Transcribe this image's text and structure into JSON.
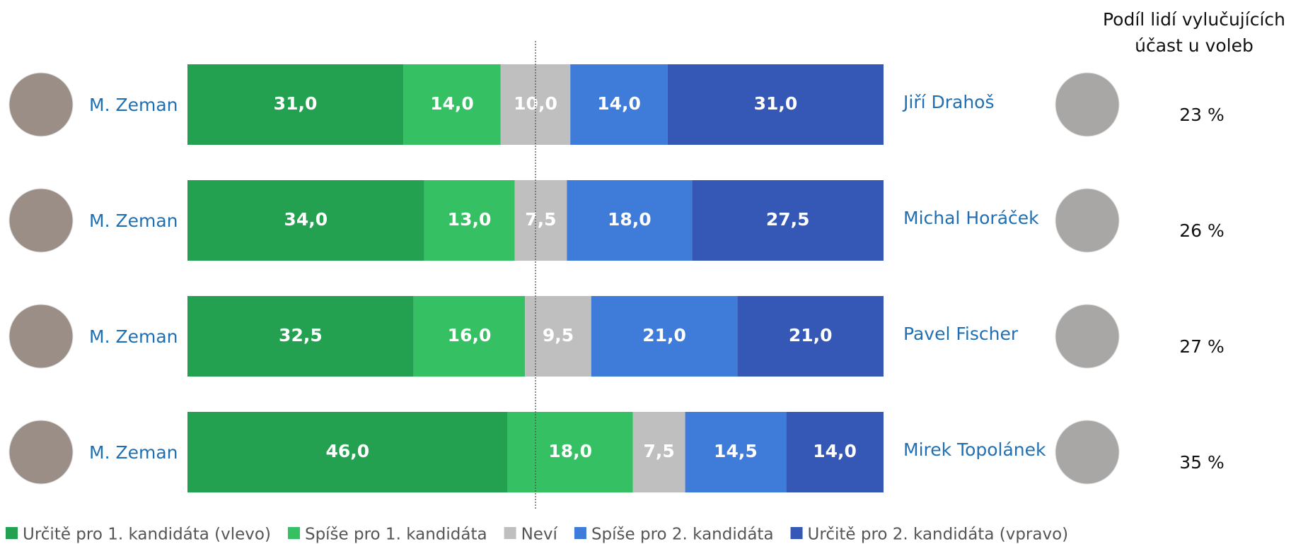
{
  "chart_data": {
    "type": "stacked_bar_horizontal",
    "left_labels": [
      "M. Zeman",
      "M. Zeman",
      "M. Zeman",
      "M. Zeman"
    ],
    "categories": [
      "Jiří Drahoš",
      "Michal Horáček",
      "Pavel Fischer",
      "Mirek Topolánek"
    ],
    "xlim": [
      0,
      100
    ],
    "series": [
      {
        "name": "Určitě pro 1. kandidáta (vlevo)",
        "color": "#24a150",
        "values": [
          31.0,
          34.0,
          32.5,
          46.0
        ],
        "value_labels": [
          "31,0",
          "34,0",
          "32,5",
          "46,0"
        ]
      },
      {
        "name": "Spíše pro 1. kandidáta",
        "color": "#35c063",
        "values": [
          14.0,
          13.0,
          16.0,
          18.0
        ],
        "value_labels": [
          "14,0",
          "13,0",
          "16,0",
          "18,0"
        ]
      },
      {
        "name": "Neví",
        "color": "#bfbfbf",
        "values": [
          10.0,
          7.5,
          9.5,
          7.5
        ],
        "value_labels": [
          "10,0",
          "7,5",
          "9,5",
          "7,5"
        ]
      },
      {
        "name": "Spíše pro 2. kandidáta",
        "color": "#3f7bd9",
        "values": [
          14.0,
          18.0,
          21.0,
          14.5
        ],
        "value_labels": [
          "14,0",
          "18,0",
          "21,0",
          "14,5"
        ]
      },
      {
        "name": "Určitě pro 2. kandidáta (vpravo)",
        "color": "#3557b5",
        "values": [
          31.0,
          27.5,
          21.0,
          14.0
        ],
        "value_labels": [
          "31,0",
          "27,5",
          "21,0",
          "14,0"
        ]
      }
    ],
    "side_column": {
      "title": [
        "Podíl lidí vylučujících",
        "účast u voleb"
      ],
      "values": [
        23,
        26,
        27,
        35
      ],
      "value_labels": [
        "23 %",
        "26 %",
        "27 %",
        "35 %"
      ]
    }
  }
}
